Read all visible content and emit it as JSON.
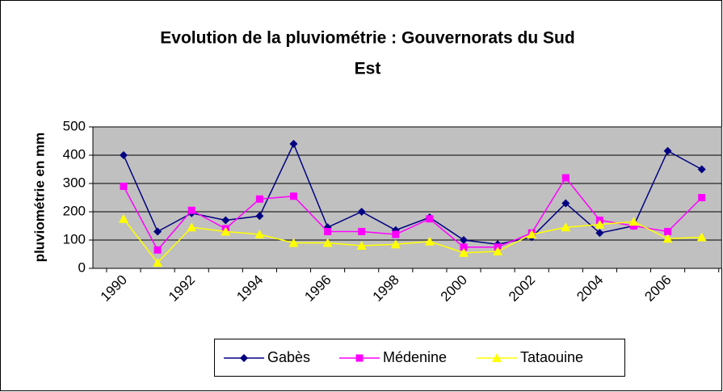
{
  "chart_data": {
    "type": "line",
    "title": "Evolution de la pluviométrie : Gouvernorats du Sud Est",
    "y_label": "pluviométrie en mm",
    "categories": [
      "1990",
      null,
      "1992",
      null,
      "1994",
      null,
      "1996",
      null,
      "1998",
      null,
      "2000",
      null,
      "2002",
      null,
      "2004",
      null,
      "2006",
      null
    ],
    "series": [
      {
        "name": "Gabès",
        "color": "#000080",
        "marker": "diamond",
        "values": [
          400,
          130,
          195,
          170,
          185,
          440,
          145,
          200,
          135,
          180,
          100,
          85,
          110,
          230,
          125,
          150,
          415,
          350
        ]
      },
      {
        "name": "Médenine",
        "color": "#ff00ff",
        "marker": "square",
        "values": [
          290,
          65,
          205,
          140,
          245,
          255,
          130,
          130,
          120,
          175,
          75,
          75,
          125,
          320,
          170,
          150,
          130,
          250
        ]
      },
      {
        "name": "Tataouine",
        "color": "#ffff00",
        "marker": "triangle",
        "values": [
          175,
          20,
          145,
          130,
          120,
          90,
          90,
          80,
          85,
          95,
          55,
          60,
          120,
          145,
          155,
          165,
          105,
          110
        ]
      }
    ],
    "ylim": [
      0,
      500
    ],
    "yticks": [
      0,
      100,
      200,
      300,
      400,
      500
    ],
    "grid": true,
    "legend": "bottom"
  }
}
